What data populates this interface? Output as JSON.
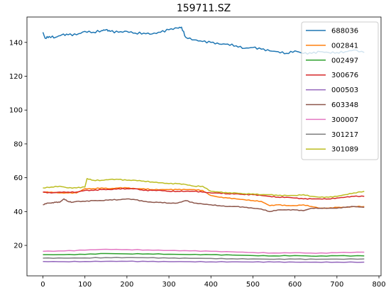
{
  "chart_data": {
    "type": "line",
    "title": "159711.SZ",
    "xlabel": "",
    "ylabel": "",
    "xlim": [
      -38,
      805
    ],
    "ylim": [
      2,
      155
    ],
    "xticks": [
      0,
      100,
      200,
      300,
      400,
      500,
      600,
      700,
      800
    ],
    "yticks": [
      20,
      40,
      60,
      80,
      100,
      120,
      140
    ],
    "grid": false,
    "legend_position": "top-right",
    "series": [
      {
        "name": "688036",
        "color": "#1f77b4",
        "x": [
          0,
          5,
          15,
          30,
          45,
          60,
          80,
          100,
          120,
          140,
          150,
          160,
          180,
          200,
          220,
          240,
          260,
          280,
          300,
          320,
          330,
          340,
          360,
          380,
          400,
          420,
          440,
          460,
          480,
          500,
          520,
          540,
          560,
          580,
          600,
          620,
          640,
          660,
          680,
          700,
          720,
          740,
          765
        ],
        "values": [
          146,
          142.5,
          143.5,
          143,
          144.5,
          144.5,
          144.5,
          146.5,
          146,
          147,
          147.5,
          146.5,
          146,
          146.5,
          145.5,
          145.5,
          145,
          146,
          147.5,
          148.5,
          149,
          143,
          141.5,
          140.5,
          140,
          139,
          139,
          138,
          136.5,
          137,
          136,
          135,
          134.5,
          133.5,
          135,
          133.5,
          133.5,
          134.5,
          134,
          134,
          134.5,
          135.5,
          134
        ]
      },
      {
        "name": "002841",
        "color": "#ff7f0e",
        "x": [
          0,
          20,
          40,
          60,
          80,
          100,
          120,
          140,
          160,
          180,
          200,
          220,
          240,
          260,
          280,
          300,
          320,
          340,
          360,
          380,
          400,
          420,
          440,
          460,
          480,
          500,
          520,
          540,
          560,
          580,
          600,
          620,
          640,
          660,
          680,
          700,
          720,
          740,
          765
        ],
        "values": [
          51.5,
          51.5,
          51,
          51,
          51,
          53.5,
          53.5,
          54,
          53.5,
          54,
          54,
          53.5,
          53.5,
          53,
          53,
          53,
          53,
          53,
          53,
          52.5,
          49.5,
          48.5,
          48,
          47.5,
          47,
          46.5,
          46,
          43.5,
          44,
          43.5,
          43.5,
          44,
          43,
          42,
          42,
          42.5,
          42.5,
          43,
          43
        ]
      },
      {
        "name": "002497",
        "color": "#2ca02c",
        "x": [
          0,
          50,
          100,
          150,
          200,
          250,
          300,
          350,
          400,
          450,
          500,
          550,
          600,
          650,
          700,
          765
        ],
        "values": [
          14.5,
          14.5,
          14.7,
          15.2,
          15,
          15,
          14.8,
          14.6,
          14.5,
          14.3,
          14,
          13.8,
          14,
          13.6,
          13.9,
          13.8
        ]
      },
      {
        "name": "300676",
        "color": "#d62728",
        "x": [
          0,
          20,
          40,
          60,
          80,
          100,
          120,
          140,
          160,
          180,
          200,
          220,
          240,
          260,
          280,
          300,
          320,
          340,
          360,
          380,
          400,
          420,
          440,
          460,
          480,
          500,
          520,
          540,
          560,
          580,
          600,
          620,
          640,
          660,
          680,
          700,
          720,
          740,
          765
        ],
        "values": [
          51.5,
          51,
          51.5,
          51.5,
          51.5,
          52.5,
          52.5,
          53,
          53,
          53.5,
          53.5,
          53.5,
          52.5,
          52.5,
          52.5,
          52,
          52,
          52,
          52,
          51.5,
          51,
          51,
          50.5,
          50.5,
          50,
          50,
          49.5,
          49,
          48.5,
          48.5,
          48,
          47.5,
          47.5,
          47.5,
          47.5,
          48,
          48.5,
          49,
          49
        ]
      },
      {
        "name": "000503",
        "color": "#9467bd",
        "x": [
          0,
          50,
          100,
          150,
          200,
          250,
          300,
          350,
          400,
          450,
          500,
          550,
          600,
          650,
          700,
          765
        ],
        "values": [
          10.5,
          10.4,
          10.5,
          10.6,
          10.6,
          10.5,
          10.4,
          10.4,
          10.3,
          10.3,
          10.2,
          10.2,
          10.1,
          10.1,
          10.1,
          10.1
        ]
      },
      {
        "name": "603348",
        "color": "#8c564b",
        "x": [
          0,
          10,
          20,
          30,
          40,
          50,
          60,
          70,
          80,
          100,
          120,
          140,
          160,
          180,
          200,
          220,
          240,
          260,
          280,
          300,
          320,
          340,
          360,
          380,
          400,
          420,
          440,
          460,
          480,
          500,
          520,
          540,
          560,
          580,
          600,
          620,
          640,
          660,
          680,
          700,
          720,
          740,
          765
        ],
        "values": [
          44,
          45,
          45,
          45.5,
          45.5,
          47.5,
          46,
          45.5,
          46,
          46,
          46.5,
          46.5,
          47,
          47,
          47.5,
          47,
          46,
          45.5,
          45.5,
          45,
          45,
          46.5,
          45,
          44.5,
          44,
          43.5,
          43,
          43,
          42.5,
          42,
          41.5,
          40,
          41,
          41,
          41,
          40.5,
          42,
          42,
          42,
          42,
          42.5,
          43,
          42.5
        ]
      },
      {
        "name": "300007",
        "color": "#e377c2",
        "x": [
          0,
          50,
          100,
          150,
          200,
          250,
          300,
          350,
          400,
          450,
          500,
          550,
          600,
          650,
          700,
          765
        ],
        "values": [
          16.5,
          16.7,
          17.2,
          17.7,
          17.5,
          17.3,
          17,
          16.8,
          16.5,
          16.2,
          15.8,
          15.5,
          15.7,
          15.3,
          15.7,
          16
        ]
      },
      {
        "name": "301217",
        "color": "#7f7f7f",
        "x": [
          0,
          50,
          100,
          150,
          200,
          250,
          300,
          350,
          400,
          450,
          500,
          550,
          600,
          650,
          700,
          765
        ],
        "values": [
          12.5,
          12.5,
          12.6,
          12.8,
          12.8,
          12.7,
          12.5,
          12.4,
          12.3,
          12.1,
          12,
          11.8,
          11.9,
          11.8,
          11.9,
          12
        ]
      },
      {
        "name": "301089",
        "color": "#bcbd22",
        "x": [
          0,
          20,
          40,
          60,
          80,
          100,
          105,
          120,
          140,
          160,
          180,
          200,
          220,
          240,
          260,
          280,
          300,
          320,
          340,
          360,
          380,
          400,
          420,
          440,
          460,
          480,
          500,
          520,
          540,
          560,
          580,
          600,
          620,
          640,
          660,
          680,
          700,
          720,
          740,
          765
        ],
        "values": [
          54,
          54.5,
          55,
          54,
          54,
          54.5,
          59.5,
          58.5,
          58.5,
          59,
          59,
          58.5,
          58.5,
          58,
          57.5,
          57,
          56.5,
          56.5,
          56,
          55,
          55,
          52,
          51.5,
          51,
          51,
          50.5,
          50.5,
          50,
          50,
          49.5,
          49.5,
          49.5,
          50,
          49,
          48.5,
          48.5,
          49,
          50,
          51,
          52
        ]
      }
    ]
  }
}
